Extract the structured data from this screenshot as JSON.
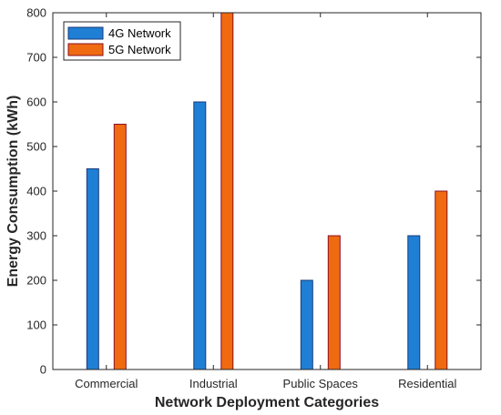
{
  "chart_data": {
    "type": "bar",
    "title": "",
    "xlabel": "Network Deployment Categories",
    "ylabel": "Energy Consumption (kWh)",
    "categories": [
      "Commercial",
      "Industrial",
      "Public Spaces",
      "Residential"
    ],
    "series": [
      {
        "name": "4G Network",
        "values": [
          450,
          600,
          200,
          300
        ],
        "color": "#1f7fd4"
      },
      {
        "name": "5G Network",
        "values": [
          550,
          850,
          300,
          400
        ],
        "color": "#ef6a10"
      }
    ],
    "ylim": [
      0,
      800
    ],
    "yticks": [
      0,
      100,
      200,
      300,
      400,
      500,
      600,
      700,
      800
    ],
    "grid": false,
    "legend_position": "top-left",
    "box": true
  }
}
